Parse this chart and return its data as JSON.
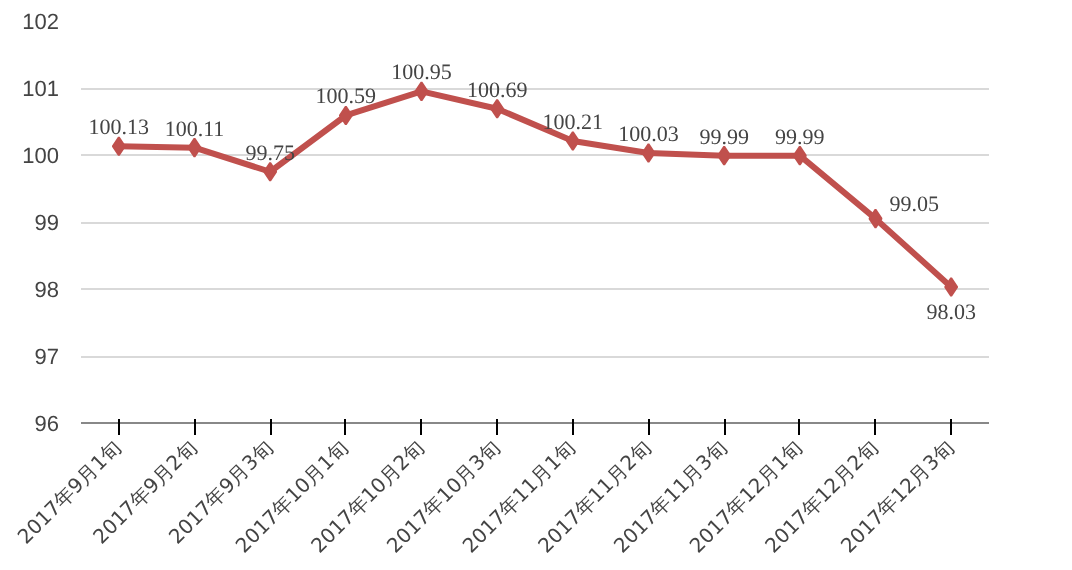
{
  "chart_data": {
    "type": "line",
    "categories": [
      "2017年9月1旬",
      "2017年9月2旬",
      "2017年9月3旬",
      "2017年10月1旬",
      "2017年10月2旬",
      "2017年10月3旬",
      "2017年11月1旬",
      "2017年11月2旬",
      "2017年11月3旬",
      "2017年12月1旬",
      "2017年12月2旬",
      "2017年12月3旬"
    ],
    "series": [
      {
        "color": "#c0504d",
        "values": [
          100.13,
          100.11,
          99.75,
          100.59,
          100.95,
          100.69,
          100.21,
          100.03,
          99.99,
          99.99,
          99.05,
          98.03
        ]
      }
    ],
    "ylim": [
      96,
      102
    ],
    "yticks": [
      96,
      97,
      98,
      99,
      100,
      101,
      102
    ],
    "grid": "y",
    "marker": "diamond",
    "line_style": "solid",
    "data_labels": true
  }
}
